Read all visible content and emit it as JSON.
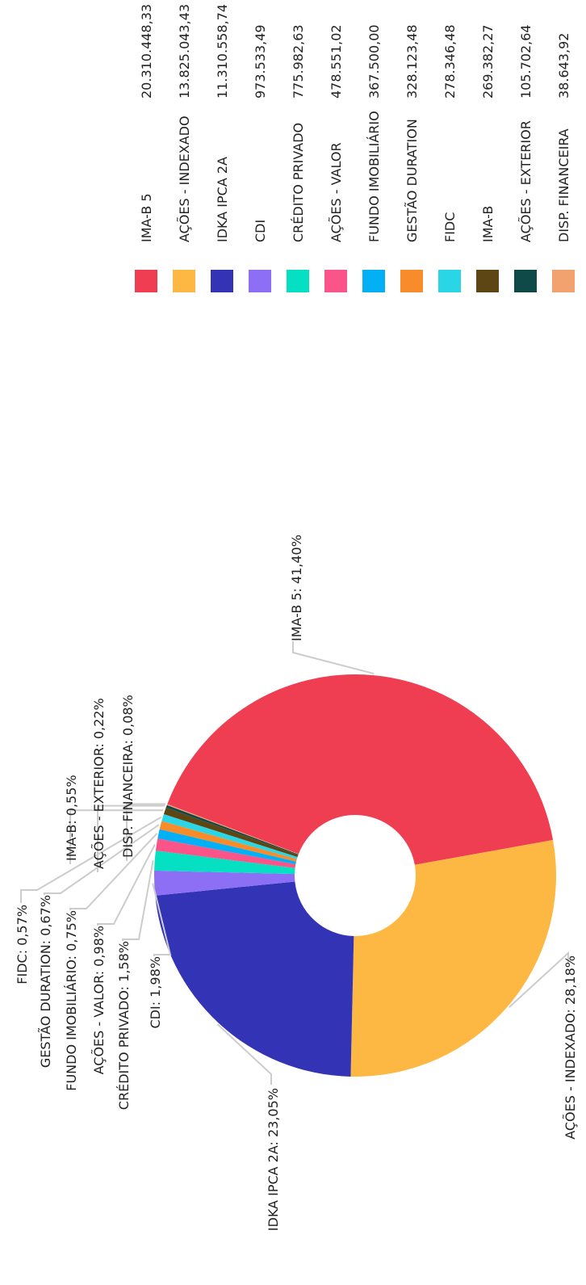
{
  "chart_data": {
    "type": "pie",
    "donut": true,
    "rotation": "chart rotated 90 degrees counter-clockwise",
    "legend_position": "top",
    "slices": [
      {
        "label": "IMA-B 5",
        "value": 20310448.33,
        "value_text": "20.310.448,33",
        "percent_text": "IMA-B 5: 41,40%",
        "color": "#ef3e52"
      },
      {
        "label": "AÇÕES - INDEXADO",
        "value": 13825043.43,
        "value_text": "13.825.043,43",
        "percent_text": "AÇÕES - INDEXADO: 28,18%",
        "color": "#fdb843"
      },
      {
        "label": "IDKA IPCA 2A",
        "value": 11310558.74,
        "value_text": "11.310.558,74",
        "percent_text": "IDKA IPCA 2A: 23,05%",
        "color": "#3333b5"
      },
      {
        "label": "CDI",
        "value": 973533.49,
        "value_text": "973.533,49",
        "percent_text": "CDI: 1,98%",
        "color": "#8c6ff5"
      },
      {
        "label": "CRÉDITO PRIVADO",
        "value": 775982.63,
        "value_text": "775.982,63",
        "percent_text": "CRÉDITO PRIVADO: 1,58%",
        "color": "#06e0c2"
      },
      {
        "label": "AÇÕES - VALOR",
        "value": 478551.02,
        "value_text": "478.551,02",
        "percent_text": "AÇÕES - VALOR: 0,98%",
        "color": "#fa5488"
      },
      {
        "label": "FUNDO IMOBILIÁRIO",
        "value": 367500.0,
        "value_text": "367.500,00",
        "percent_text": "FUNDO IMOBILIÁRIO: 0,75%",
        "color": "#03b0f5"
      },
      {
        "label": "GESTÃO DURATION",
        "value": 328123.48,
        "value_text": "328.123,48",
        "percent_text": "GESTÃO DURATION: 0,67%",
        "color": "#f88b2a"
      },
      {
        "label": "FIDC",
        "value": 278346.48,
        "value_text": "278.346,48",
        "percent_text": "FIDC: 0,57%",
        "color": "#2ad6e6"
      },
      {
        "label": "IMA-B",
        "value": 269382.27,
        "value_text": "269.382,27",
        "percent_text": "IMA-B: 0,55%",
        "color": "#5e4614"
      },
      {
        "label": "AÇÕES - EXTERIOR",
        "value": 105702.64,
        "value_text": "105.702,64",
        "percent_text": "AÇÕES - EXTERIOR: 0,22%",
        "color": "#0f4a48"
      },
      {
        "label": "DISP. FINANCEIRA",
        "value": 38643.92,
        "value_text": "38.643,92",
        "percent_text": "DISP. FINANCEIRA: 0,08%",
        "color": "#f2a26e"
      }
    ]
  }
}
